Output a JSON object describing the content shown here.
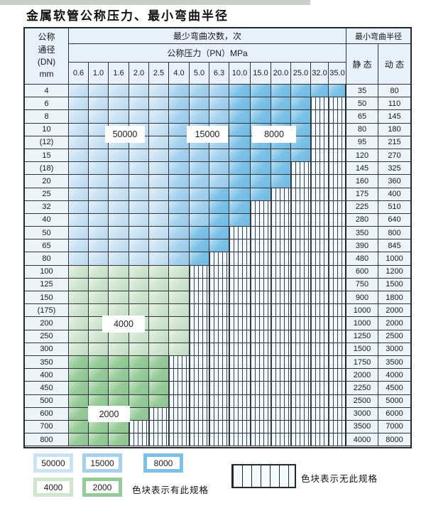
{
  "title": "金属软管公称压力、最小弯曲半径",
  "table": {
    "corner_header_lines": [
      "公称",
      "通径",
      "(DN)",
      "mm"
    ],
    "cycles_header": "最少弯曲次数，次",
    "pressure_header": "公称压力（PN）MPa",
    "pressure_columns": [
      "0.6",
      "1.0",
      "1.6",
      "2.0",
      "2.5",
      "4.0",
      "5.0",
      "6.3",
      "10.0",
      "15.0",
      "20.0",
      "25.0",
      "32.0",
      "35.0"
    ],
    "radius_header": "最小弯曲半径",
    "static_header": "静 态",
    "dynamic_header": "动 态",
    "cell_legend_key": {
      "L": "50000",
      "M": "15000",
      "D": "8000",
      "g": "4000",
      "G": "2000",
      "s": "no-spec-striped"
    },
    "rows": [
      {
        "dn": "4",
        "static": "35",
        "dynamic": "80",
        "cells": [
          "L",
          "L",
          "L",
          "L",
          "L",
          "M",
          "M",
          "M",
          "D",
          "D",
          "D",
          "D",
          "D",
          "D"
        ]
      },
      {
        "dn": "6",
        "static": "50",
        "dynamic": "110",
        "cells": [
          "L",
          "L",
          "L",
          "L",
          "L",
          "M",
          "M",
          "M",
          "D",
          "D",
          "D",
          "D",
          "s",
          "s"
        ]
      },
      {
        "dn": "8",
        "static": "65",
        "dynamic": "145",
        "cells": [
          "L",
          "L",
          "L",
          "L",
          "L",
          "M",
          "M",
          "M",
          "D",
          "D",
          "D",
          "D",
          "s",
          "s"
        ]
      },
      {
        "dn": "10",
        "static": "80",
        "dynamic": "180",
        "cells": [
          "L",
          "L",
          "L",
          "L",
          "L",
          "M",
          "M",
          "M",
          "D",
          "D",
          "D",
          "D",
          "s",
          "s"
        ]
      },
      {
        "dn": "(12)",
        "static": "95",
        "dynamic": "215",
        "cells": [
          "L",
          "L",
          "L",
          "L",
          "L",
          "M",
          "M",
          "M",
          "D",
          "D",
          "D",
          "D",
          "s",
          "s"
        ]
      },
      {
        "dn": "15",
        "static": "120",
        "dynamic": "270",
        "cells": [
          "L",
          "L",
          "L",
          "L",
          "L",
          "M",
          "M",
          "M",
          "D",
          "D",
          "D",
          "D",
          "s",
          "s"
        ]
      },
      {
        "dn": "(18)",
        "static": "145",
        "dynamic": "325",
        "cells": [
          "L",
          "L",
          "L",
          "L",
          "L",
          "M",
          "M",
          "M",
          "D",
          "D",
          "D",
          "s",
          "s",
          "s"
        ]
      },
      {
        "dn": "20",
        "static": "160",
        "dynamic": "360",
        "cells": [
          "L",
          "L",
          "L",
          "L",
          "L",
          "M",
          "M",
          "M",
          "D",
          "D",
          "D",
          "s",
          "s",
          "s"
        ]
      },
      {
        "dn": "25",
        "static": "175",
        "dynamic": "400",
        "cells": [
          "L",
          "L",
          "L",
          "L",
          "L",
          "M",
          "M",
          "D",
          "D",
          "D",
          "s",
          "s",
          "s",
          "s"
        ]
      },
      {
        "dn": "32",
        "static": "225",
        "dynamic": "510",
        "cells": [
          "L",
          "L",
          "L",
          "L",
          "L",
          "M",
          "M",
          "D",
          "D",
          "s",
          "s",
          "s",
          "s",
          "s"
        ]
      },
      {
        "dn": "40",
        "static": "280",
        "dynamic": "640",
        "cells": [
          "L",
          "L",
          "L",
          "L",
          "L",
          "M",
          "M",
          "D",
          "D",
          "s",
          "s",
          "s",
          "s",
          "s"
        ]
      },
      {
        "dn": "50",
        "static": "350",
        "dynamic": "800",
        "cells": [
          "L",
          "L",
          "L",
          "L",
          "L",
          "M",
          "D",
          "D",
          "s",
          "s",
          "s",
          "s",
          "s",
          "s"
        ]
      },
      {
        "dn": "65",
        "static": "390",
        "dynamic": "845",
        "cells": [
          "L",
          "L",
          "L",
          "L",
          "L",
          "M",
          "D",
          "D",
          "s",
          "s",
          "s",
          "s",
          "s",
          "s"
        ]
      },
      {
        "dn": "80",
        "static": "480",
        "dynamic": "1000",
        "cells": [
          "L",
          "L",
          "L",
          "L",
          "L",
          "M",
          "D",
          "s",
          "s",
          "s",
          "s",
          "s",
          "s",
          "s"
        ]
      },
      {
        "dn": "100",
        "static": "600",
        "dynamic": "1200",
        "cells": [
          "g",
          "g",
          "g",
          "g",
          "g",
          "g",
          "s",
          "s",
          "s",
          "s",
          "s",
          "s",
          "s",
          "s"
        ]
      },
      {
        "dn": "125",
        "static": "750",
        "dynamic": "1500",
        "cells": [
          "g",
          "g",
          "g",
          "g",
          "g",
          "g",
          "s",
          "s",
          "s",
          "s",
          "s",
          "s",
          "s",
          "s"
        ]
      },
      {
        "dn": "150",
        "static": "900",
        "dynamic": "1800",
        "cells": [
          "g",
          "g",
          "g",
          "g",
          "g",
          "g",
          "s",
          "s",
          "s",
          "s",
          "s",
          "s",
          "s",
          "s"
        ]
      },
      {
        "dn": "(175)",
        "static": "1000",
        "dynamic": "2000",
        "cells": [
          "g",
          "g",
          "g",
          "g",
          "g",
          "g",
          "s",
          "s",
          "s",
          "s",
          "s",
          "s",
          "s",
          "s"
        ]
      },
      {
        "dn": "200",
        "static": "1000",
        "dynamic": "2000",
        "cells": [
          "g",
          "g",
          "g",
          "g",
          "g",
          "g",
          "s",
          "s",
          "s",
          "s",
          "s",
          "s",
          "s",
          "s"
        ]
      },
      {
        "dn": "250",
        "static": "1250",
        "dynamic": "2500",
        "cells": [
          "g",
          "g",
          "g",
          "g",
          "g",
          "g",
          "s",
          "s",
          "s",
          "s",
          "s",
          "s",
          "s",
          "s"
        ]
      },
      {
        "dn": "300",
        "static": "1500",
        "dynamic": "3000",
        "cells": [
          "g",
          "g",
          "g",
          "g",
          "g",
          "g",
          "s",
          "s",
          "s",
          "s",
          "s",
          "s",
          "s",
          "s"
        ]
      },
      {
        "dn": "350",
        "static": "1750",
        "dynamic": "3500",
        "cells": [
          "G",
          "G",
          "G",
          "G",
          "G",
          "s",
          "s",
          "s",
          "s",
          "s",
          "s",
          "s",
          "s",
          "s"
        ]
      },
      {
        "dn": "400",
        "static": "2000",
        "dynamic": "4000",
        "cells": [
          "G",
          "G",
          "G",
          "G",
          "G",
          "s",
          "s",
          "s",
          "s",
          "s",
          "s",
          "s",
          "s",
          "s"
        ]
      },
      {
        "dn": "450",
        "static": "2250",
        "dynamic": "4500",
        "cells": [
          "G",
          "G",
          "G",
          "G",
          "G",
          "s",
          "s",
          "s",
          "s",
          "s",
          "s",
          "s",
          "s",
          "s"
        ]
      },
      {
        "dn": "500",
        "static": "2500",
        "dynamic": "5000",
        "cells": [
          "G",
          "G",
          "G",
          "G",
          "G",
          "s",
          "s",
          "s",
          "s",
          "s",
          "s",
          "s",
          "s",
          "s"
        ]
      },
      {
        "dn": "600",
        "static": "3000",
        "dynamic": "6000",
        "cells": [
          "G",
          "G",
          "G",
          "G",
          "s",
          "s",
          "s",
          "s",
          "s",
          "s",
          "s",
          "s",
          "s",
          "s"
        ]
      },
      {
        "dn": "700",
        "static": "3500",
        "dynamic": "7000",
        "cells": [
          "G",
          "G",
          "G",
          "s",
          "s",
          "s",
          "s",
          "s",
          "s",
          "s",
          "s",
          "s",
          "s",
          "s"
        ]
      },
      {
        "dn": "800",
        "static": "4000",
        "dynamic": "8000",
        "cells": [
          "G",
          "G",
          "G",
          "s",
          "s",
          "s",
          "s",
          "s",
          "s",
          "s",
          "s",
          "s",
          "s",
          "s"
        ]
      }
    ],
    "overlay_labels": [
      {
        "text": "50000"
      },
      {
        "text": "15000"
      },
      {
        "text": "8000"
      },
      {
        "text": "4000"
      },
      {
        "text": "2000"
      }
    ]
  },
  "legend": {
    "swatches": [
      {
        "label": "50000",
        "color": "#c9e2f4"
      },
      {
        "label": "15000",
        "color": "#a4d1ee"
      },
      {
        "label": "8000",
        "color": "#7bc1e7"
      },
      {
        "label": "4000",
        "color": "#cfe5cd"
      },
      {
        "label": "2000",
        "color": "#96cb97"
      }
    ],
    "has_spec_text": "色块表示有此规格",
    "no_spec_text": "色块表示无此规格"
  },
  "colors": {
    "light_blue_50000": "#c9e2f4",
    "medium_blue_15000": "#a4d1ee",
    "dark_blue_8000": "#7bc1e7",
    "light_green_4000": "#cfe5cd",
    "medium_green_2000": "#96cb97",
    "header_bg": "#e8f1f9",
    "grid_line": "#2e3439",
    "stripe_bg": "#f3f8fc",
    "top_band": "#cacfcb"
  }
}
